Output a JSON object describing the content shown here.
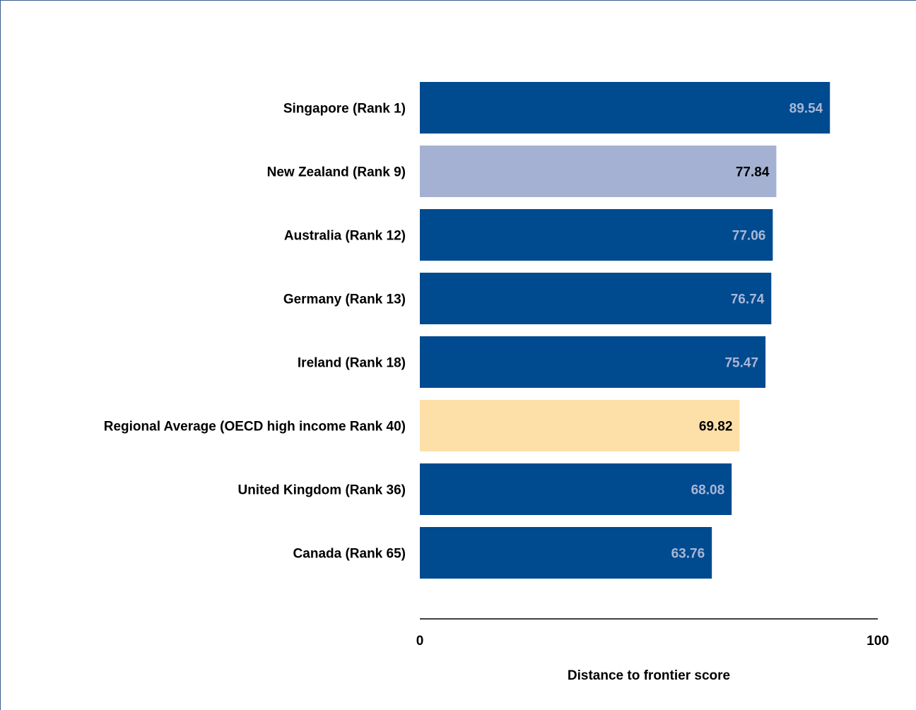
{
  "chart_data": {
    "type": "bar",
    "orientation": "horizontal",
    "title": "",
    "xlabel": "Distance to frontier score",
    "ylabel": "",
    "xlim": [
      0,
      100
    ],
    "ticks": [
      "0",
      "100"
    ],
    "grid": false,
    "legend": "none",
    "categories": [
      "Singapore (Rank 1)",
      "New Zealand (Rank 9)",
      "Australia (Rank 12)",
      "Germany (Rank 13)",
      "Ireland (Rank 18)",
      "Regional Average (OECD high income Rank 40)",
      "United Kingdom (Rank 36)",
      "Canada (Rank 65)"
    ],
    "values": [
      89.54,
      77.84,
      77.06,
      76.74,
      75.47,
      69.82,
      68.08,
      63.76
    ],
    "value_labels": [
      "89.54",
      "77.84",
      "77.06",
      "76.74",
      "75.47",
      "69.82",
      "68.08",
      "63.76"
    ],
    "bar_colors": [
      "#004a8f",
      "#a4b1d3",
      "#004a8f",
      "#004a8f",
      "#004a8f",
      "#fde0a8",
      "#004a8f",
      "#004a8f"
    ],
    "label_colors": [
      "#a9b7d6",
      "#000000",
      "#a9b7d6",
      "#a9b7d6",
      "#a9b7d6",
      "#000000",
      "#a9b7d6",
      "#a9b7d6"
    ]
  }
}
